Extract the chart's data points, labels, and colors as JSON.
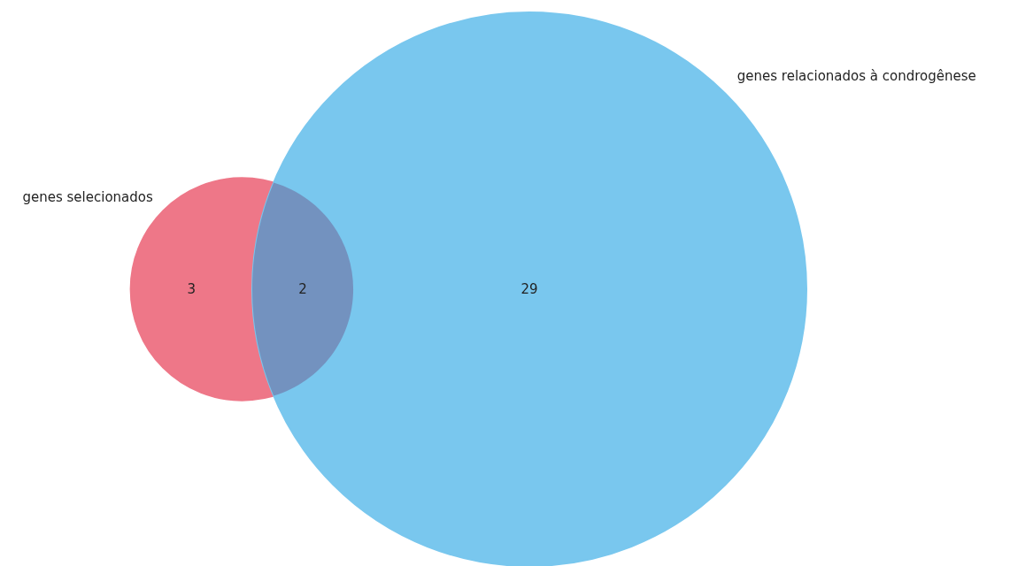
{
  "chart_data": {
    "type": "other",
    "categories": [
      null,
      null,
      null
    ],
    "values": [
      3,
      2,
      29
    ],
    "data_labels": true,
    "colors": [
      "#ee7788",
      "#7392bf",
      "#79c7ee"
    ],
    "annotations": [
      "genes selecionados",
      "genes relacionados à condrogênese"
    ]
  }
}
